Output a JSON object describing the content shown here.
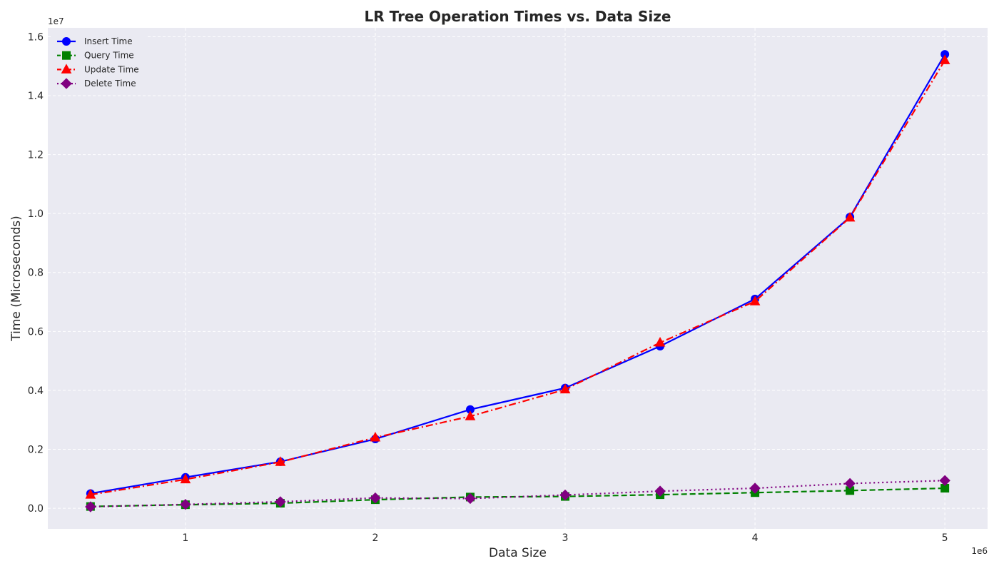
{
  "chart_data": {
    "type": "line",
    "title": "LR Tree Operation Times vs. Data Size",
    "xlabel": "Data Size",
    "ylabel": "Time (Microseconds)",
    "x_offset_label": "1e6",
    "y_offset_label": "1e7",
    "xlim": [
      275000,
      5225000
    ],
    "ylim": [
      -700000,
      16300000
    ],
    "x_ticks": [
      1000000,
      2000000,
      3000000,
      4000000,
      5000000
    ],
    "x_tick_labels": [
      "1",
      "2",
      "3",
      "4",
      "5"
    ],
    "y_ticks": [
      0,
      2000000,
      4000000,
      6000000,
      8000000,
      10000000,
      12000000,
      14000000,
      16000000
    ],
    "y_tick_labels": [
      "0.0",
      "0.2",
      "0.4",
      "0.6",
      "0.8",
      "1.0",
      "1.2",
      "1.4",
      "1.6"
    ],
    "grid": true,
    "legend_position": "top-left",
    "background_color": "#eaeaf2",
    "grid_color": "#ffffff",
    "x": [
      500000,
      1000000,
      1500000,
      2000000,
      2500000,
      3000000,
      3500000,
      4000000,
      4500000,
      5000000
    ],
    "series": [
      {
        "name": "Insert Time",
        "color": "#0000ff",
        "marker": "circle",
        "linestyle": "solid",
        "values": [
          500000,
          1050000,
          1580000,
          2350000,
          3350000,
          4080000,
          5500000,
          7100000,
          9880000,
          15400000
        ]
      },
      {
        "name": "Query Time",
        "color": "#008000",
        "marker": "square",
        "linestyle": "dashed",
        "values": [
          60000,
          120000,
          170000,
          290000,
          380000,
          400000,
          460000,
          530000,
          600000,
          680000
        ]
      },
      {
        "name": "Update Time",
        "color": "#ff0000",
        "marker": "triangle",
        "linestyle": "dashdot",
        "values": [
          460000,
          980000,
          1570000,
          2400000,
          3120000,
          4030000,
          5620000,
          7020000,
          9860000,
          15200000
        ]
      },
      {
        "name": "Delete Time",
        "color": "#800080",
        "marker": "diamond",
        "linestyle": "dotted",
        "values": [
          50000,
          130000,
          220000,
          350000,
          330000,
          450000,
          580000,
          680000,
          840000,
          940000
        ]
      }
    ]
  }
}
